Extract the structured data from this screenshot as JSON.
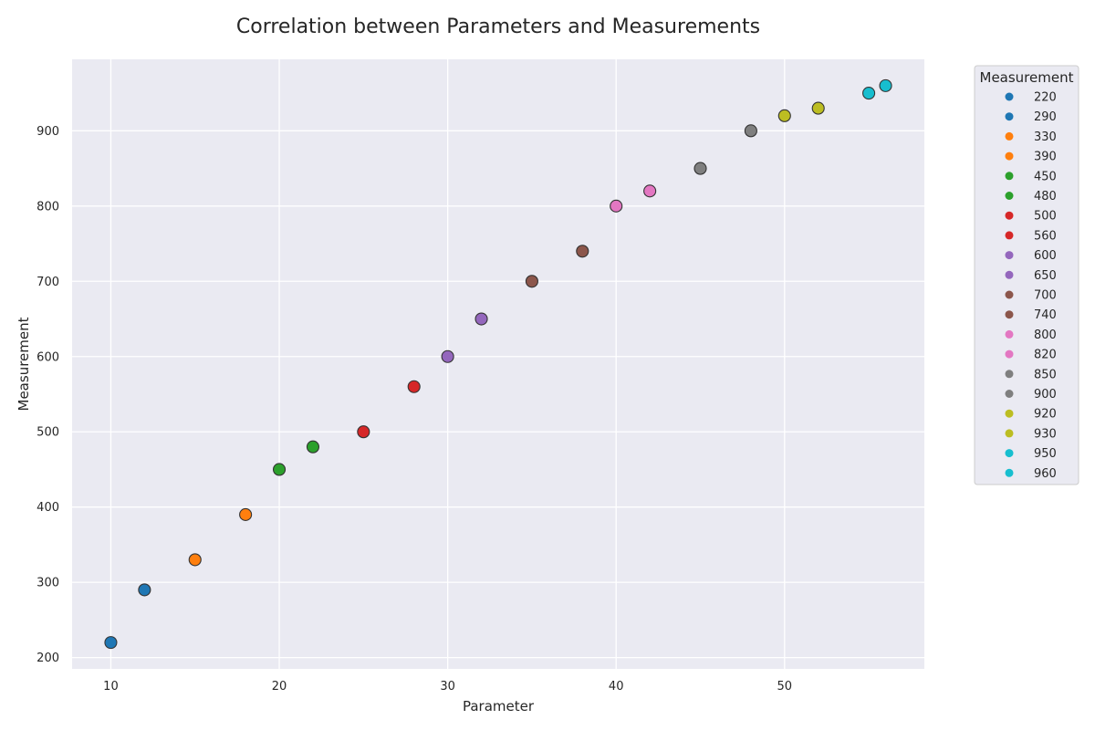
{
  "chart_data": {
    "type": "scatter",
    "title": "Correlation between Parameters and Measurements",
    "xlabel": "Parameter",
    "ylabel": "Measurement",
    "xlim": [
      7.7,
      58.3
    ],
    "ylim": [
      185,
      995
    ],
    "xticks": [
      10,
      20,
      30,
      40,
      50
    ],
    "yticks": [
      200,
      300,
      400,
      500,
      600,
      700,
      800,
      900
    ],
    "grid": true,
    "legend_title": "Measurement",
    "legend_position": "outside-right",
    "palette": [
      "#1f77b4",
      "#ff7f0e",
      "#2ca02c",
      "#d62728",
      "#9467bd",
      "#8c564b",
      "#e377c2",
      "#7f7f7f",
      "#bcbd22",
      "#17becf"
    ],
    "points": [
      {
        "x": 10,
        "y": 220,
        "label": "220",
        "color": "#1f77b4"
      },
      {
        "x": 12,
        "y": 290,
        "label": "290",
        "color": "#1f77b4"
      },
      {
        "x": 15,
        "y": 330,
        "label": "330",
        "color": "#ff7f0e"
      },
      {
        "x": 18,
        "y": 390,
        "label": "390",
        "color": "#ff7f0e"
      },
      {
        "x": 20,
        "y": 450,
        "label": "450",
        "color": "#2ca02c"
      },
      {
        "x": 22,
        "y": 480,
        "label": "480",
        "color": "#2ca02c"
      },
      {
        "x": 25,
        "y": 500,
        "label": "500",
        "color": "#d62728"
      },
      {
        "x": 28,
        "y": 560,
        "label": "560",
        "color": "#d62728"
      },
      {
        "x": 30,
        "y": 600,
        "label": "600",
        "color": "#9467bd"
      },
      {
        "x": 32,
        "y": 650,
        "label": "650",
        "color": "#9467bd"
      },
      {
        "x": 35,
        "y": 700,
        "label": "700",
        "color": "#8c564b"
      },
      {
        "x": 38,
        "y": 740,
        "label": "740",
        "color": "#8c564b"
      },
      {
        "x": 40,
        "y": 800,
        "label": "800",
        "color": "#e377c2"
      },
      {
        "x": 42,
        "y": 820,
        "label": "820",
        "color": "#e377c2"
      },
      {
        "x": 45,
        "y": 850,
        "label": "850",
        "color": "#7f7f7f"
      },
      {
        "x": 48,
        "y": 900,
        "label": "900",
        "color": "#7f7f7f"
      },
      {
        "x": 50,
        "y": 920,
        "label": "920",
        "color": "#bcbd22"
      },
      {
        "x": 52,
        "y": 930,
        "label": "930",
        "color": "#bcbd22"
      },
      {
        "x": 55,
        "y": 950,
        "label": "950",
        "color": "#17becf"
      },
      {
        "x": 56,
        "y": 960,
        "label": "960",
        "color": "#17becf"
      }
    ]
  }
}
